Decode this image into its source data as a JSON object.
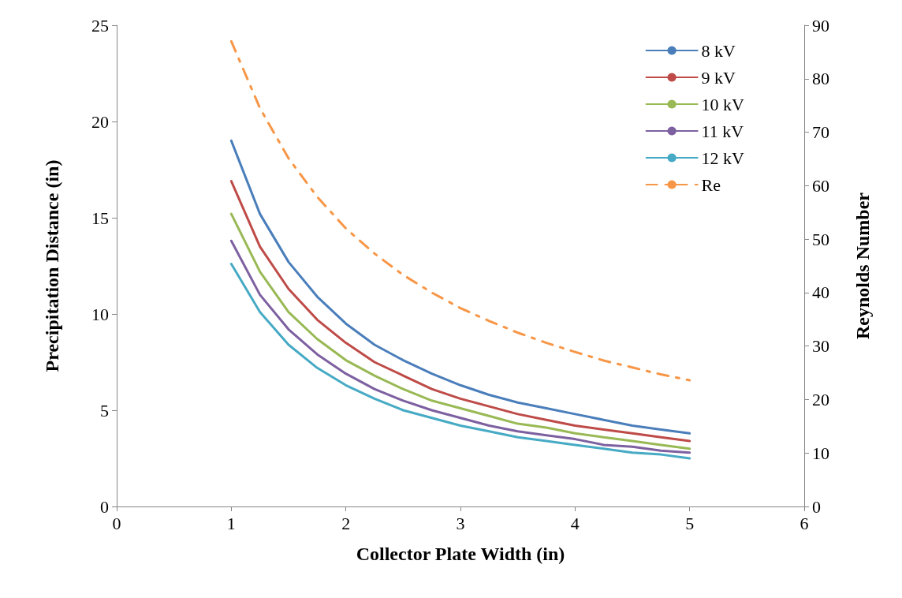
{
  "chart_data": {
    "type": "line",
    "xlabel": "Collector Plate Width (in)",
    "ylabel": "Precipitation Distance (in)",
    "y2label": "Reynolds Number",
    "x": [
      1,
      1.25,
      1.5,
      1.75,
      2,
      2.25,
      2.5,
      2.75,
      3,
      3.25,
      3.5,
      3.75,
      4,
      4.25,
      4.5,
      4.75,
      5
    ],
    "series": [
      {
        "name": "8 kV",
        "color": "#4a7ebb",
        "values": [
          19,
          15.2,
          12.7,
          10.9,
          9.5,
          8.4,
          7.6,
          6.9,
          6.3,
          5.8,
          5.4,
          5.1,
          4.8,
          4.5,
          4.2,
          4.0,
          3.8
        ]
      },
      {
        "name": "9 kV",
        "color": "#be4b48",
        "values": [
          16.9,
          13.5,
          11.3,
          9.7,
          8.5,
          7.5,
          6.8,
          6.1,
          5.6,
          5.2,
          4.8,
          4.5,
          4.2,
          4.0,
          3.8,
          3.6,
          3.4
        ]
      },
      {
        "name": "10 kV",
        "color": "#98b954",
        "values": [
          15.2,
          12.2,
          10.1,
          8.7,
          7.6,
          6.8,
          6.1,
          5.5,
          5.1,
          4.7,
          4.3,
          4.1,
          3.8,
          3.6,
          3.4,
          3.2,
          3.0
        ]
      },
      {
        "name": "11 kV",
        "color": "#7d60a0",
        "values": [
          13.8,
          11.0,
          9.2,
          7.9,
          6.9,
          6.1,
          5.5,
          5.0,
          4.6,
          4.2,
          3.9,
          3.7,
          3.5,
          3.2,
          3.1,
          2.9,
          2.8
        ]
      },
      {
        "name": "12 kV",
        "color": "#46aac5",
        "values": [
          12.6,
          10.1,
          8.4,
          7.2,
          6.3,
          5.6,
          5.0,
          4.6,
          4.2,
          3.9,
          3.6,
          3.4,
          3.2,
          3.0,
          2.8,
          2.7,
          2.5
        ]
      },
      {
        "name": "Re",
        "color": "#f79646",
        "axis": "y2",
        "line_style": "dashed",
        "values": [
          87.0,
          74.5,
          65.1,
          57.9,
          52.0,
          47.3,
          43.3,
          40.0,
          37.1,
          34.7,
          32.5,
          30.6,
          28.9,
          27.3,
          26.0,
          24.7,
          23.6
        ]
      }
    ],
    "xlim": [
      0,
      6
    ],
    "xticks": [
      0,
      1,
      2,
      3,
      4,
      5,
      6
    ],
    "ylim": [
      0,
      25
    ],
    "yticks": [
      0,
      5,
      10,
      15,
      20,
      25
    ],
    "y2lim": [
      0,
      90
    ],
    "y2ticks": [
      0,
      10,
      20,
      30,
      40,
      50,
      60,
      70,
      80,
      90
    ],
    "grid": false,
    "legend": "top right",
    "marker": "none",
    "line_style": "solid"
  }
}
